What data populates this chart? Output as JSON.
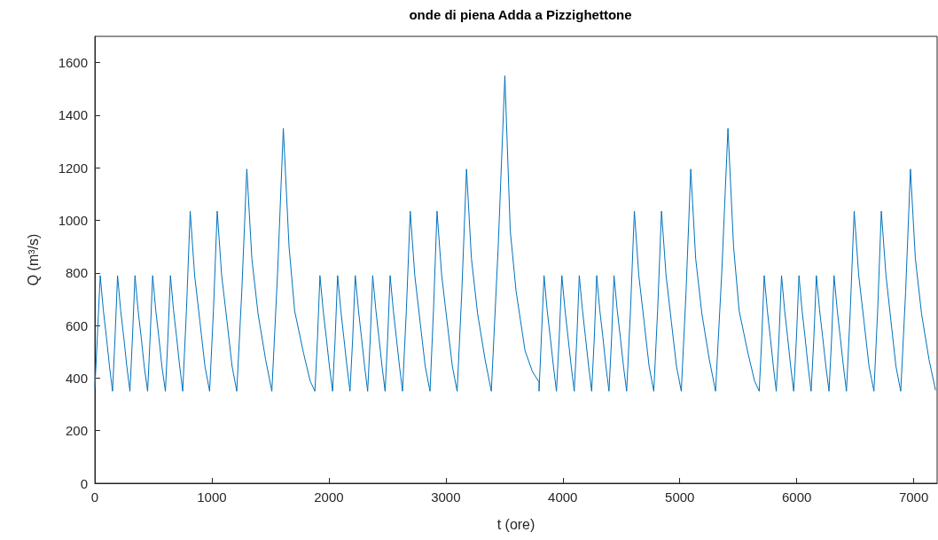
{
  "chart_data": {
    "type": "line",
    "title": "onde di piena Adda a Pizzighettone",
    "xlabel": "t (ore)",
    "ylabel": "Q (m³/s)",
    "xlim": [
      0,
      7200
    ],
    "xticks": [
      0,
      1000,
      2000,
      3000,
      4000,
      5000,
      6000,
      7000
    ],
    "ylim": [
      0,
      1700
    ],
    "yticks": [
      0,
      200,
      400,
      600,
      800,
      1000,
      1200,
      1400,
      1600
    ],
    "marker": "none",
    "line_style": "solid",
    "series": [
      {
        "color": "#0072bd",
        "x": [
          0,
          46,
          72,
          99,
          125,
          151,
          172,
          194,
          220,
          247,
          273,
          300,
          321,
          343,
          369,
          396,
          422,
          451,
          472,
          494,
          520,
          547,
          573,
          603,
          624,
          646,
          672,
          699,
          725,
          751,
          783,
          815,
          853,
          898,
          941,
          981,
          1014,
          1046,
          1084,
          1130,
          1173,
          1213,
          1256,
          1299,
          1342,
          1395,
          1460,
          1513,
          1562,
          1611,
          1660,
          1708,
          1784,
          1840,
          1881,
          1903,
          1924,
          1951,
          1978,
          2005,
          2032,
          2054,
          2075,
          2102,
          2128,
          2155,
          2181,
          2204,
          2226,
          2253,
          2279,
          2306,
          2332,
          2354,
          2375,
          2402,
          2428,
          2455,
          2481,
          2503,
          2524,
          2551,
          2577,
          2604,
          2630,
          2663,
          2696,
          2735,
          2780,
          2824,
          2865,
          2895,
          2925,
          2965,
          3011,
          3056,
          3097,
          3137,
          3177,
          3219,
          3272,
          3336,
          3389,
          3447,
          3505,
          3551,
          3601,
          3677,
          3740,
          3797,
          3797,
          3840,
          3866,
          3893,
          3920,
          3946,
          3969,
          3992,
          4019,
          4045,
          4072,
          4098,
          4120,
          4141,
          4168,
          4194,
          4221,
          4247,
          4269,
          4290,
          4316,
          4343,
          4369,
          4395,
          4417,
          4438,
          4465,
          4492,
          4519,
          4546,
          4579,
          4612,
          4650,
          4695,
          4738,
          4778,
          4811,
          4844,
          4883,
          4928,
          4972,
          5013,
          5054,
          5094,
          5136,
          5189,
          5253,
          5306,
          5359,
          5412,
          5460,
          5508,
          5583,
          5639,
          5679,
          5701,
          5722,
          5748,
          5774,
          5800,
          5825,
          5848,
          5870,
          5896,
          5922,
          5948,
          5974,
          5997,
          6019,
          6045,
          6071,
          6097,
          6123,
          6146,
          6168,
          6195,
          6222,
          6249,
          6276,
          6298,
          6319,
          6346,
          6372,
          6399,
          6425,
          6458,
          6491,
          6530,
          6575,
          6618,
          6660,
          6692,
          6723,
          6763,
          6806,
          6848,
          6889,
          6931,
          6972,
          7014,
          7067,
          7131,
          7186
        ],
        "values": [
          360,
          790,
          660,
          555,
          445,
          350,
          550,
          790,
          660,
          555,
          445,
          350,
          550,
          790,
          660,
          555,
          445,
          350,
          550,
          790,
          660,
          555,
          445,
          350,
          550,
          790,
          660,
          555,
          445,
          350,
          660,
          1035,
          790,
          615,
          445,
          350,
          660,
          1035,
          790,
          615,
          445,
          350,
          730,
          1195,
          855,
          645,
          470,
          350,
          800,
          1350,
          900,
          655,
          495,
          390,
          350,
          550,
          790,
          660,
          555,
          445,
          350,
          550,
          790,
          660,
          555,
          445,
          350,
          550,
          790,
          660,
          555,
          445,
          350,
          550,
          790,
          660,
          555,
          445,
          350,
          550,
          790,
          660,
          555,
          445,
          350,
          660,
          1035,
          790,
          615,
          445,
          350,
          660,
          1035,
          790,
          615,
          445,
          350,
          730,
          1195,
          855,
          645,
          470,
          350,
          890,
          1550,
          960,
          730,
          505,
          425,
          385,
          350,
          790,
          660,
          555,
          445,
          350,
          550,
          790,
          660,
          555,
          445,
          350,
          550,
          790,
          660,
          555,
          445,
          350,
          550,
          790,
          660,
          555,
          445,
          350,
          550,
          790,
          660,
          555,
          445,
          350,
          660,
          1035,
          790,
          615,
          445,
          350,
          660,
          1035,
          790,
          615,
          445,
          350,
          730,
          1195,
          855,
          645,
          470,
          350,
          800,
          1350,
          900,
          655,
          495,
          390,
          350,
          550,
          790,
          660,
          555,
          445,
          350,
          550,
          790,
          660,
          555,
          445,
          350,
          550,
          790,
          660,
          555,
          445,
          350,
          550,
          790,
          660,
          555,
          445,
          350,
          550,
          790,
          660,
          555,
          445,
          350,
          660,
          1035,
          790,
          615,
          445,
          350,
          660,
          1035,
          790,
          615,
          445,
          350,
          730,
          1195,
          855,
          645,
          470,
          355
        ]
      }
    ]
  }
}
